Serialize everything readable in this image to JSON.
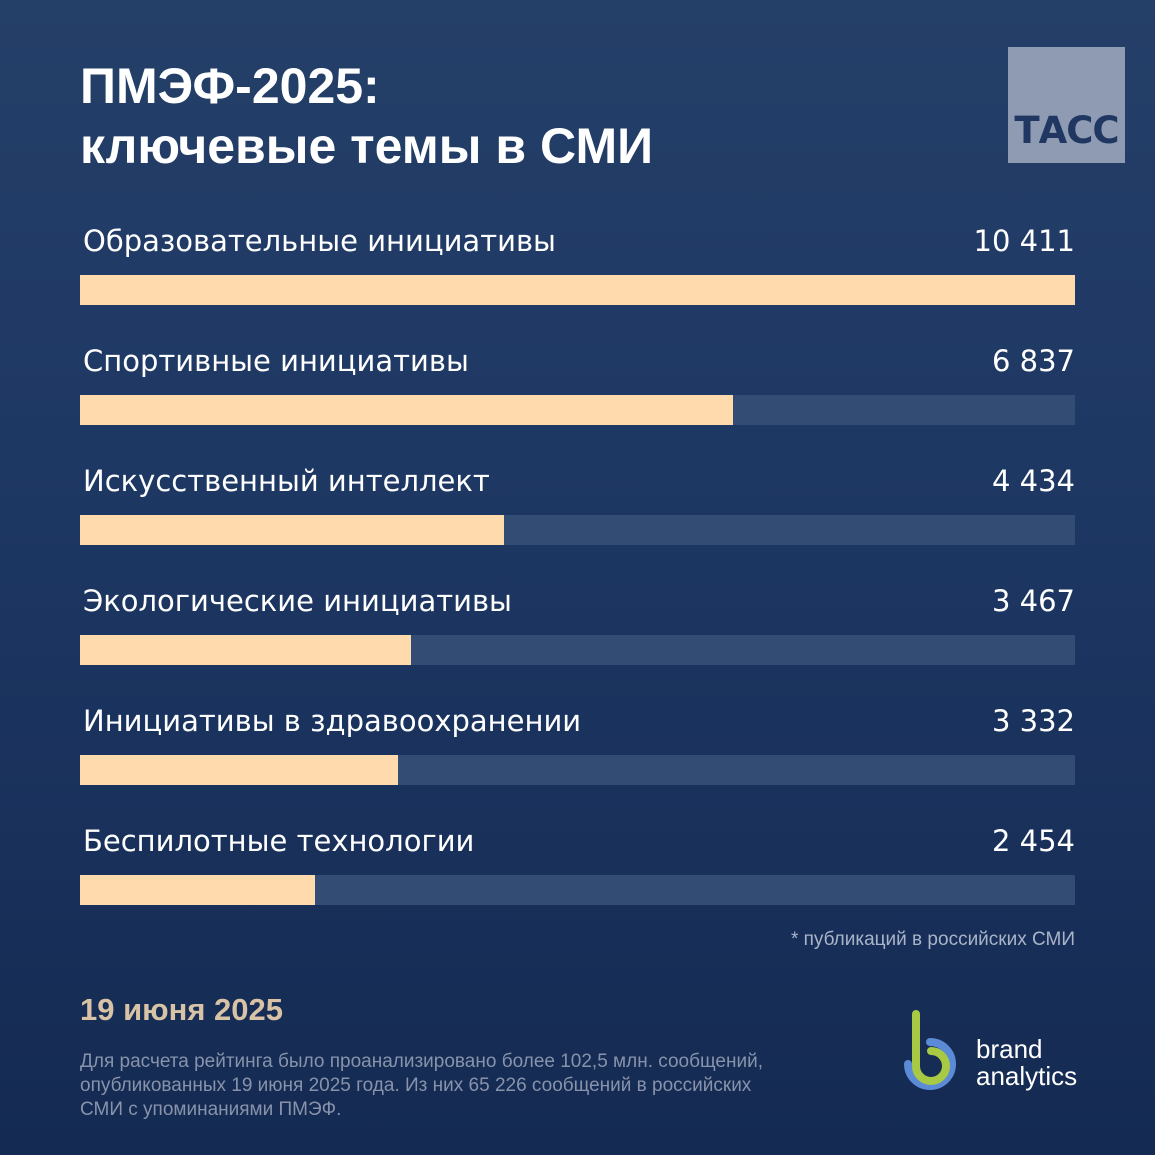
{
  "header": {
    "title_line1": "ПМЭФ-2025:",
    "title_line2": "ключевые темы в СМИ",
    "logo_text": "ТАСС"
  },
  "chart_data": {
    "type": "bar",
    "orientation": "horizontal",
    "categories": [
      "Образовательные инициативы",
      "Спортивные инициативы",
      "Искусственный интеллект",
      "Экологические инициативы",
      "Инициативы в здравоохранении",
      "Беспилотные технологии"
    ],
    "values": [
      10411,
      6837,
      4434,
      3467,
      3332,
      2454
    ],
    "value_labels": [
      "10 411",
      "6 837",
      "4 434",
      "3 467",
      "3 332",
      "2 454"
    ],
    "xlim": [
      0,
      10411
    ],
    "grid": false,
    "legend": "none"
  },
  "footnote": "* публикаций в российских СМИ",
  "date": "19 июня 2025",
  "methodology": {
    "line1": "Для расчета рейтинга было проанализировано более 102,5 млн. сообщений,",
    "line2": "опубликованных 19 июня 2025 года. Из них 65 226 сообщений в российских",
    "line3": "СМИ с упоминаниями ПМЭФ."
  },
  "brand": {
    "line1": "brand",
    "line2": "analytics"
  },
  "colors": {
    "background": "#1d3763",
    "bar_fill": "#fedaad",
    "bar_track": "#324c74",
    "date": "#d9c3a6",
    "logo_tile": "#8e9bb2",
    "brand_green": "#a7c943",
    "brand_blue": "#5b8ad6"
  }
}
